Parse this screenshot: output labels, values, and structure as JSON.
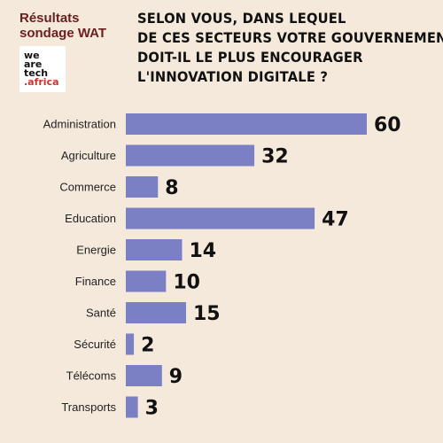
{
  "header": {
    "survey_line1": "Résultats",
    "survey_line2": "sondage WAT",
    "logo": {
      "line1": "we",
      "line2": "are",
      "line3": "tech",
      "line4": ".africa"
    },
    "question_lines": [
      "SELON VOUS, DANS LEQUEL",
      "DE CES SECTEURS VOTRE GOUVERNEMENT",
      "DOIT-IL LE PLUS ENCOURAGER",
      "L'INNOVATION DIGITALE ?"
    ]
  },
  "colors": {
    "background": "#f5e9dc",
    "bar": "#7b7fc4",
    "title": "#6b1e1e"
  },
  "chart_data": {
    "type": "bar",
    "orientation": "horizontal",
    "categories": [
      "Administration",
      "Agriculture",
      "Commerce",
      "Education",
      "Energie",
      "Finance",
      "Santé",
      "Sécurité",
      "Télécoms",
      "Transports"
    ],
    "values": [
      60,
      32,
      8,
      47,
      14,
      10,
      15,
      2,
      9,
      3
    ],
    "xlim": [
      0,
      60
    ],
    "grid": false,
    "legend": "none"
  }
}
